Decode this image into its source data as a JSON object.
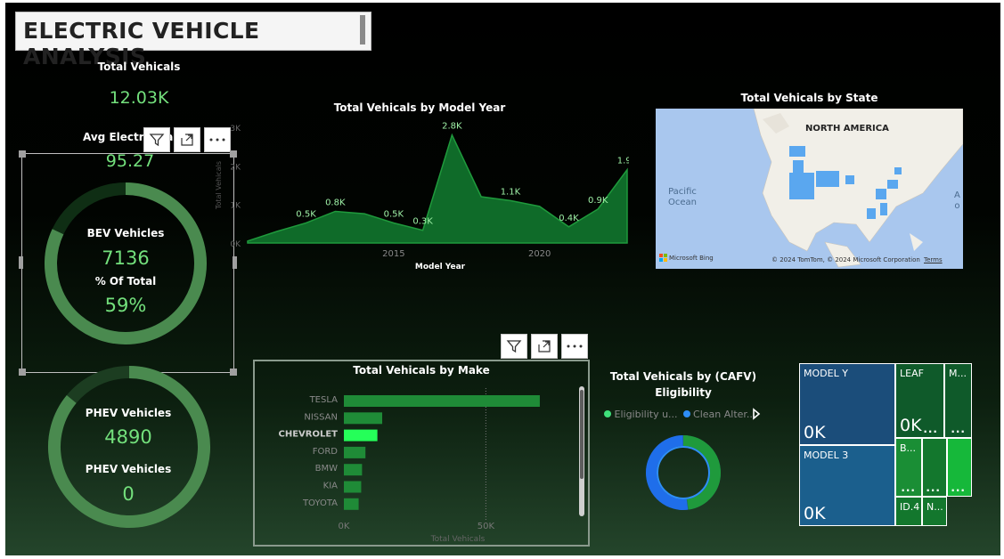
{
  "header": {
    "title": "ELECTRIC VEHICLE ANALYSIS"
  },
  "kpis": {
    "total_label": "Total Vehicals",
    "total_value": "12.03K",
    "avg_label": "Avg Electric Ra",
    "avg_label_tail": "ng",
    "avg_value": "95.27"
  },
  "bev": {
    "label": "BEV Vehicles",
    "value": "7136",
    "pct_label": "% Of Total",
    "pct_value": "59%",
    "fraction": 0.59
  },
  "phev": {
    "label": "PHEV Vehicles",
    "value": "4890",
    "label2": "PHEV Vehicles",
    "value2": "0",
    "fraction": 0.41
  },
  "year_chart": {
    "title": "Total Vehicals by Model Year",
    "xlabel": "Model Year",
    "ylabel": "Total Vehicals",
    "yticks": [
      "0K",
      "1K",
      "2K",
      "3K"
    ],
    "xticks": [
      {
        "label": "2015",
        "x": 2015
      },
      {
        "label": "2020",
        "x": 2020
      }
    ],
    "labels": [
      "0.5K",
      "0.8K",
      "0.5K",
      "0.3K",
      "2.8K",
      "1.1K",
      "0.4K",
      "0.9K",
      "1.9K"
    ]
  },
  "chart_data": [
    {
      "type": "area",
      "title": "Total Vehicals by Model Year",
      "xlabel": "Model Year",
      "ylabel": "Total Vehicals",
      "x": [
        2010,
        2011,
        2012,
        2013,
        2014,
        2015,
        2016,
        2017,
        2018,
        2019,
        2020,
        2021,
        2022,
        2023
      ],
      "values": [
        50,
        300,
        520,
        820,
        760,
        520,
        330,
        2800,
        1200,
        1100,
        950,
        420,
        880,
        1900
      ],
      "ylim": [
        0,
        3000
      ],
      "grid": false
    },
    {
      "type": "bar",
      "orientation": "horizontal",
      "title": "Total Vehicals by Make",
      "xlabel": "Total Vehicals",
      "categories": [
        "TESLA",
        "NISSAN",
        "CHEVROLET",
        "FORD",
        "BMW",
        "KIA",
        "TOYOTA"
      ],
      "values": [
        69000,
        13500,
        11800,
        7600,
        6400,
        6100,
        5200
      ],
      "xlim": [
        0,
        80000
      ],
      "highlight": "CHEVROLET"
    },
    {
      "type": "pie",
      "title": "Total Vehicals by (CAFV) Eligibility",
      "series": [
        {
          "name": "Eligibility u...",
          "value": 0.48,
          "color": "#1f9a3c"
        },
        {
          "name": "Clean Alter...",
          "value": 0.52,
          "color": "#1f6eea"
        }
      ]
    }
  ],
  "make_chart": {
    "title": "Total Vehicals by Make",
    "xlabel": "Total Vehicals",
    "xticks": [
      {
        "label": "0K",
        "v": 0
      },
      {
        "label": "50K",
        "v": 50000
      }
    ]
  },
  "cafv": {
    "title_line1": "Total Vehicals by (CAFV)",
    "title_line2": "Eligibility",
    "legend": [
      {
        "name": "Eligibility u...",
        "color": "#3fe07a"
      },
      {
        "name": "Clean Alter...",
        "color": "#2e8ef7"
      }
    ]
  },
  "map": {
    "title": "Total Vehicals by State",
    "label_na": "NORTH AMERICA",
    "label_pacific": "Pacific\nOcean",
    "label_atl": "A\no",
    "attribution": "© 2024 TomTom, © 2024 Microsoft Corporation",
    "terms": "Terms",
    "brand": "Microsoft Bing"
  },
  "treemap": {
    "cells": [
      {
        "name": "MODEL Y",
        "value": "0K",
        "more": "",
        "color": "#1b4d7a"
      },
      {
        "name": "MODEL 3",
        "value": "0K",
        "more": "",
        "color": "#1b5f8d"
      },
      {
        "name": "LEAF",
        "value": "0K",
        "more": "...",
        "color": "#0f5a2a"
      },
      {
        "name": "M...",
        "value": "",
        "more": "...",
        "color": "#0f5a2a"
      },
      {
        "name": "B...",
        "value": "",
        "more": "...",
        "color": "#1a8e35"
      },
      {
        "name": "",
        "value": "",
        "more": "...",
        "color": "#13772d"
      },
      {
        "name": "",
        "value": "",
        "more": "...",
        "color": "#16b83a"
      },
      {
        "name": "ID.4",
        "value": "",
        "more": "",
        "color": "#13772d"
      },
      {
        "name": "N...",
        "value": "",
        "more": "",
        "color": "#13772d"
      }
    ]
  },
  "icons": {
    "filter": "filter-icon",
    "focus": "focus-mode-icon",
    "more": "more-options-icon",
    "chevron": "chevron-right-icon"
  }
}
